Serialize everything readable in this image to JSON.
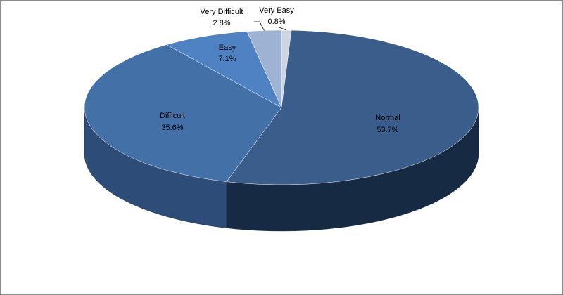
{
  "chart_data": {
    "type": "pie",
    "style": "3d",
    "categories": [
      "Very Easy",
      "Normal",
      "Difficult",
      "Easy",
      "Very Difficult"
    ],
    "values": [
      0.8,
      53.7,
      35.6,
      7.1,
      2.8
    ],
    "value_labels": [
      "0.8%",
      "53.7%",
      "35.6%",
      "7.1%",
      "2.8%"
    ],
    "colors": [
      "#cdd5e2",
      "#3a5d8c",
      "#4470a8",
      "#4f82c2",
      "#9eb2d4"
    ],
    "side_colors": [
      "#8f98a8",
      "#172a43",
      "#2d4c78",
      "#2f5384",
      "#6a7fa3"
    ],
    "legend": "none"
  }
}
